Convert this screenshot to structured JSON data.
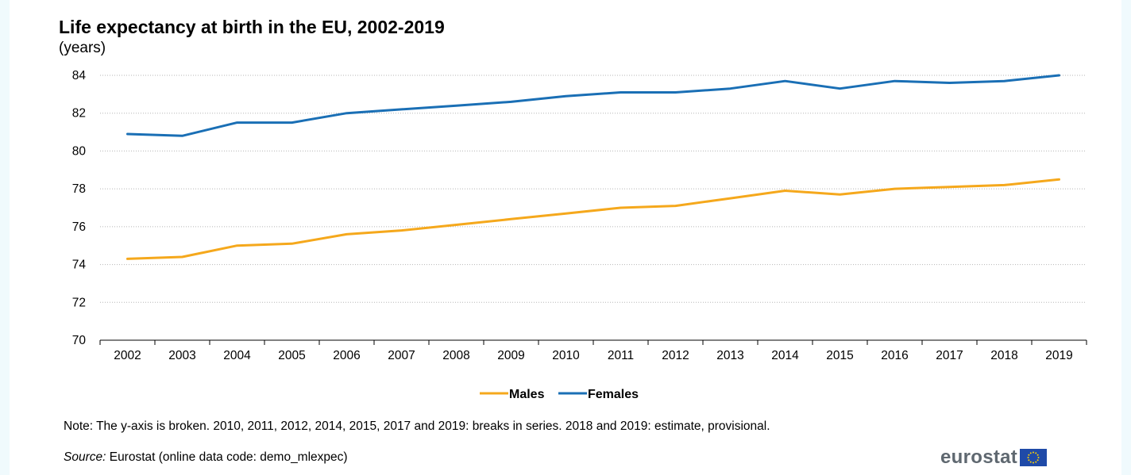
{
  "chart_data": {
    "type": "line",
    "title": "Life expectancy at birth in the EU, 2002-2019",
    "subtitle": "(years)",
    "xlabel": "",
    "ylabel": "",
    "categories": [
      "2002",
      "2003",
      "2004",
      "2005",
      "2006",
      "2007",
      "2008",
      "2009",
      "2010",
      "2011",
      "2012",
      "2013",
      "2014",
      "2015",
      "2016",
      "2017",
      "2018",
      "2019"
    ],
    "ylim": [
      70,
      84
    ],
    "yticks": [
      "70",
      "72",
      "74",
      "76",
      "78",
      "80",
      "82",
      "84"
    ],
    "grid": "horizontal dotted",
    "legend": "bottom-center",
    "series": [
      {
        "name": "Males",
        "color": "#f5a81c",
        "values": [
          74.3,
          74.4,
          75.0,
          75.1,
          75.6,
          75.8,
          76.1,
          76.4,
          76.7,
          77.0,
          77.1,
          77.5,
          77.9,
          77.7,
          78.0,
          78.1,
          78.2,
          78.5
        ]
      },
      {
        "name": "Females",
        "color": "#1a6fb5",
        "values": [
          80.9,
          80.8,
          81.5,
          81.5,
          82.0,
          82.2,
          82.4,
          82.6,
          82.9,
          83.1,
          83.1,
          83.3,
          83.7,
          83.3,
          83.7,
          83.6,
          83.7,
          84.0
        ]
      }
    ]
  },
  "footer": {
    "note": "Note: The y-axis is broken.  2010, 2011, 2012, 2014, 2015, 2017 and 2019: breaks in series.  2018 and 2019: estimate, provisional.",
    "source_label": "Source:",
    "source_text": " Eurostat (online data code: demo_mlexpec)",
    "logo_text": "eurostat"
  }
}
